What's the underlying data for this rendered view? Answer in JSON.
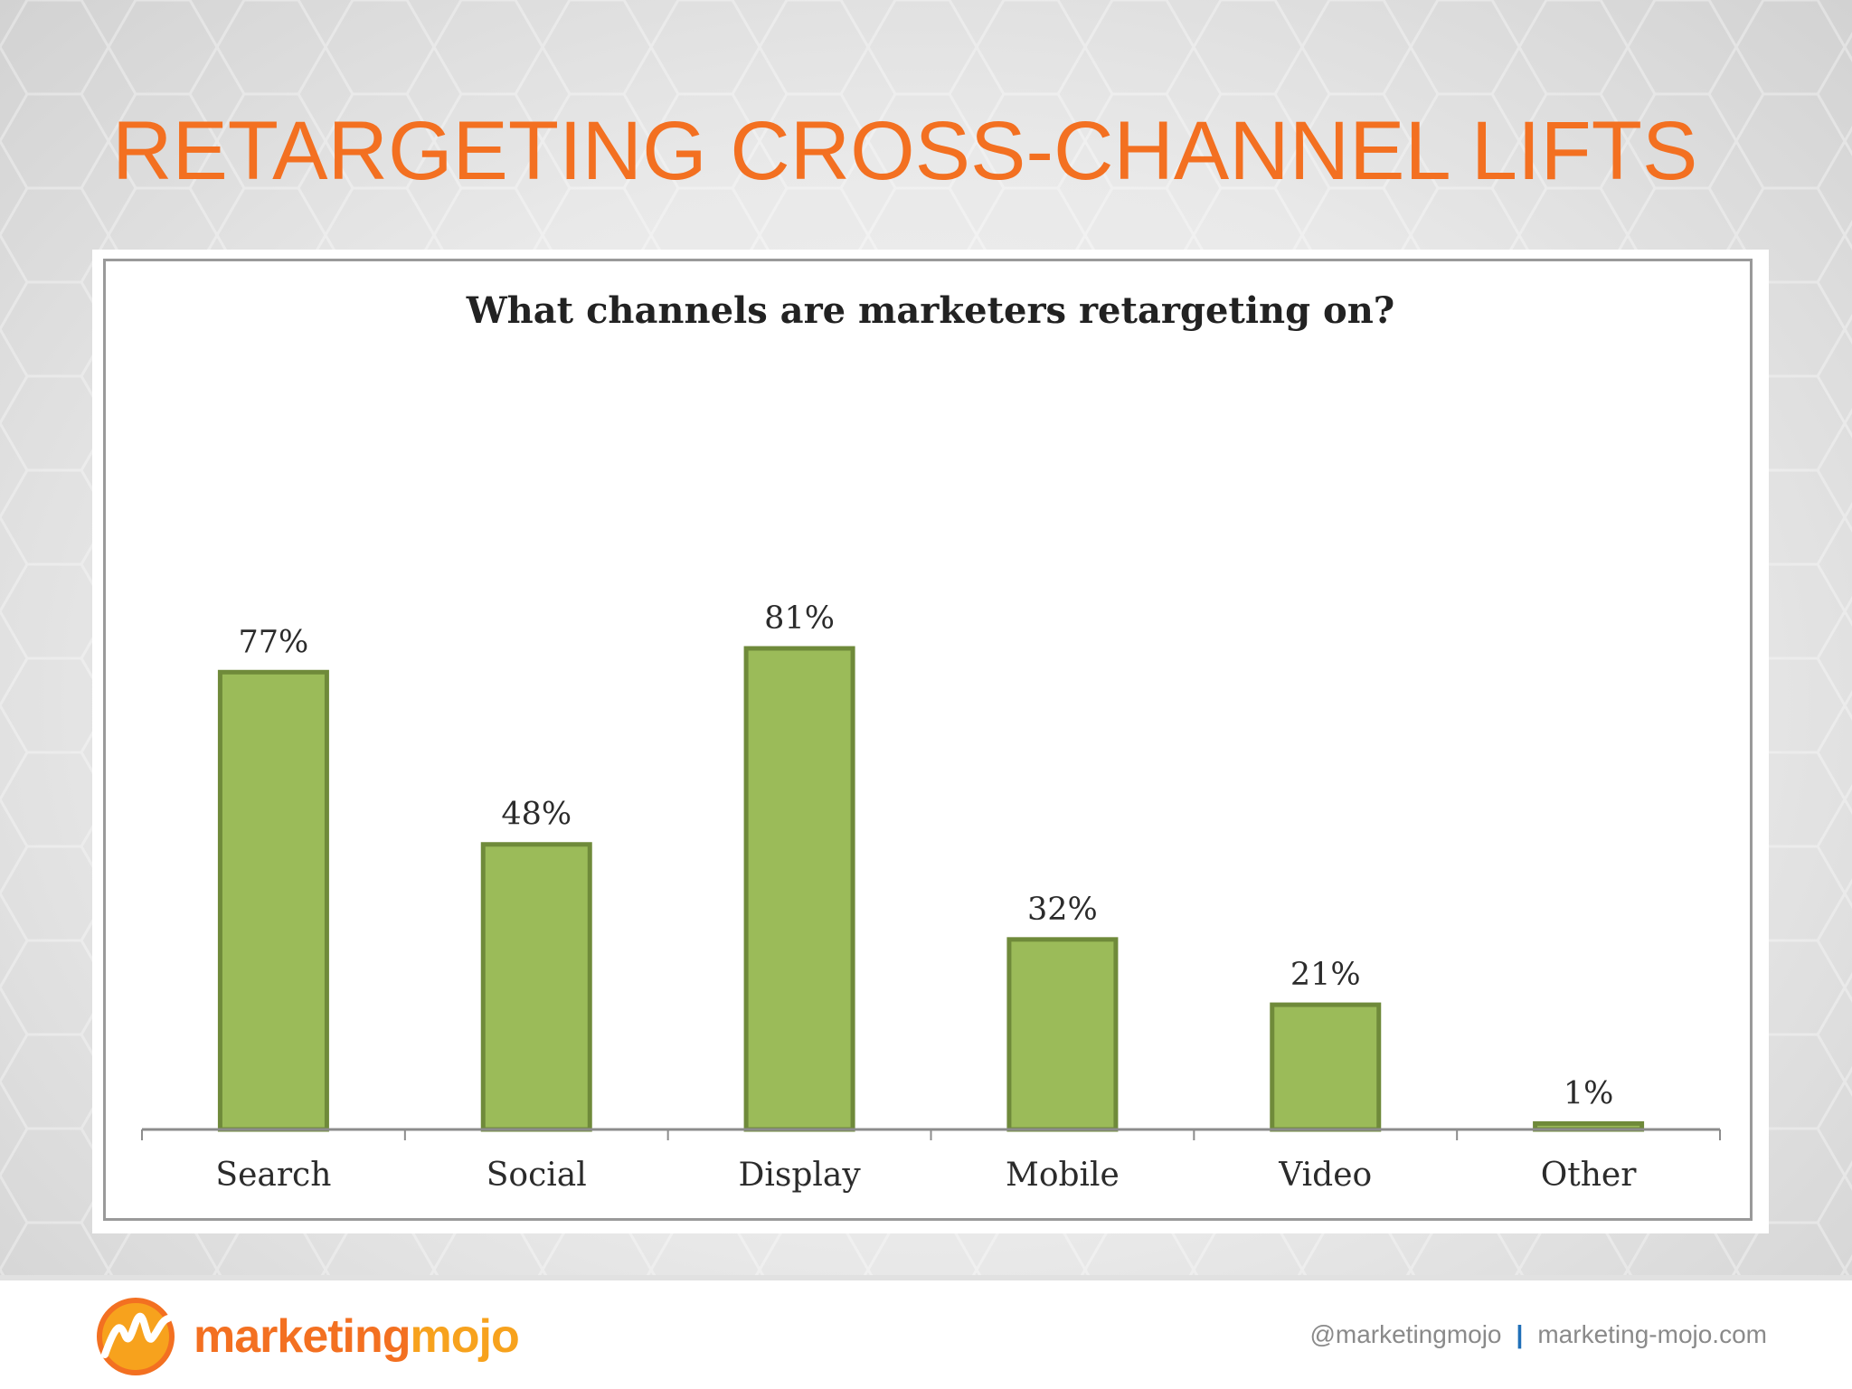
{
  "slide": {
    "title": "RETARGETING CROSS-CHANNEL LIFTS"
  },
  "chart_data": {
    "type": "bar",
    "title": "What channels are marketers retargeting on?",
    "categories": [
      "Search",
      "Social",
      "Display",
      "Mobile",
      "Video",
      "Other"
    ],
    "values": [
      77,
      48,
      81,
      32,
      21,
      1
    ],
    "value_labels": [
      "77%",
      "48%",
      "81%",
      "32%",
      "21%",
      "1%"
    ],
    "xlabel": "",
    "ylabel": "",
    "ylim": [
      0,
      81
    ],
    "grid": false,
    "legend": "none",
    "bar_color": "#9bbb59",
    "bar_edge_color": "#6f8a3a"
  },
  "footer": {
    "logo_part_a": "marketing",
    "logo_part_b": "mojo",
    "twitter": "@marketingmojo",
    "separator": "|",
    "website": "marketing-mojo.com"
  },
  "colors": {
    "title": "#f37021",
    "accent_orange": "#f37021",
    "accent_yellow": "#f7a21d",
    "separator_blue": "#1f6fb8"
  }
}
